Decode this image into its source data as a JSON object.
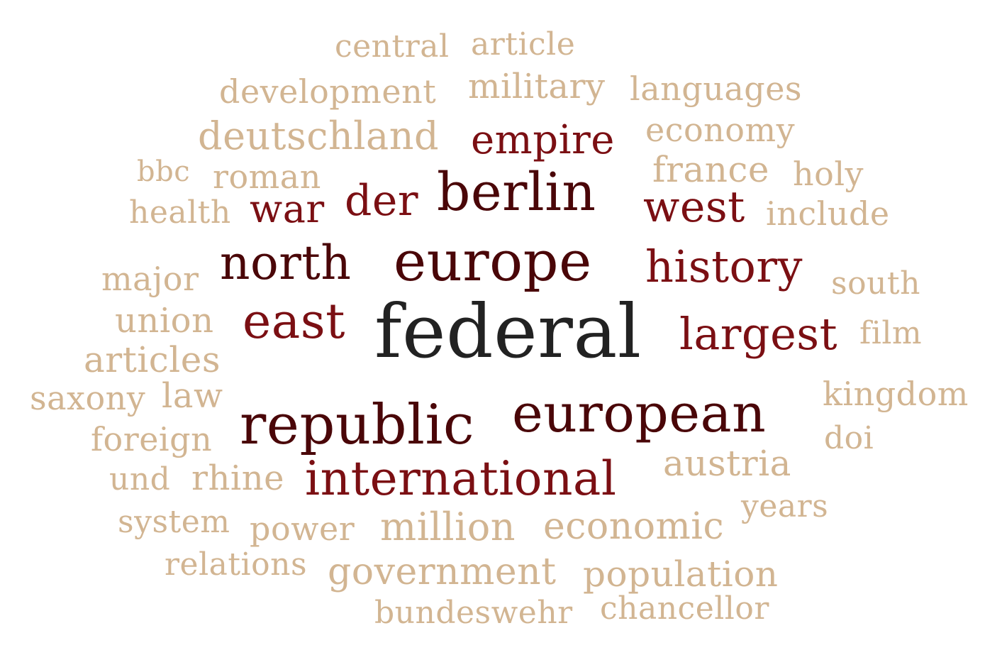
{
  "colors": {
    "light": "#d2b592",
    "mid": "#7b0f13",
    "dark": "#4a0608",
    "center": "#222222"
  },
  "words": [
    {
      "text": "central",
      "tone": "light"
    },
    {
      "text": "article",
      "tone": "light"
    },
    {
      "text": "development",
      "tone": "light"
    },
    {
      "text": "military",
      "tone": "light"
    },
    {
      "text": "languages",
      "tone": "light"
    },
    {
      "text": "deutschland",
      "tone": "light"
    },
    {
      "text": "empire",
      "tone": "mid"
    },
    {
      "text": "economy",
      "tone": "light"
    },
    {
      "text": "bbc",
      "tone": "light"
    },
    {
      "text": "roman",
      "tone": "light"
    },
    {
      "text": "france",
      "tone": "light"
    },
    {
      "text": "holy",
      "tone": "light"
    },
    {
      "text": "health",
      "tone": "light"
    },
    {
      "text": "war",
      "tone": "mid"
    },
    {
      "text": "der",
      "tone": "mid"
    },
    {
      "text": "berlin",
      "tone": "dark"
    },
    {
      "text": "west",
      "tone": "mid"
    },
    {
      "text": "include",
      "tone": "light"
    },
    {
      "text": "north",
      "tone": "dark"
    },
    {
      "text": "europe",
      "tone": "dark"
    },
    {
      "text": "history",
      "tone": "mid"
    },
    {
      "text": "major",
      "tone": "light"
    },
    {
      "text": "south",
      "tone": "light"
    },
    {
      "text": "union",
      "tone": "light"
    },
    {
      "text": "east",
      "tone": "mid"
    },
    {
      "text": "federal",
      "tone": "center"
    },
    {
      "text": "largest",
      "tone": "mid"
    },
    {
      "text": "film",
      "tone": "light"
    },
    {
      "text": "articles",
      "tone": "light"
    },
    {
      "text": "saxony",
      "tone": "light"
    },
    {
      "text": "law",
      "tone": "light"
    },
    {
      "text": "kingdom",
      "tone": "light"
    },
    {
      "text": "republic",
      "tone": "dark"
    },
    {
      "text": "european",
      "tone": "dark"
    },
    {
      "text": "foreign",
      "tone": "light"
    },
    {
      "text": "doi",
      "tone": "light"
    },
    {
      "text": "und",
      "tone": "light"
    },
    {
      "text": "rhine",
      "tone": "light"
    },
    {
      "text": "international",
      "tone": "mid"
    },
    {
      "text": "austria",
      "tone": "light"
    },
    {
      "text": "years",
      "tone": "light"
    },
    {
      "text": "system",
      "tone": "light"
    },
    {
      "text": "power",
      "tone": "light"
    },
    {
      "text": "million",
      "tone": "light"
    },
    {
      "text": "economic",
      "tone": "light"
    },
    {
      "text": "relations",
      "tone": "light"
    },
    {
      "text": "government",
      "tone": "light"
    },
    {
      "text": "population",
      "tone": "light"
    },
    {
      "text": "bundeswehr",
      "tone": "light"
    },
    {
      "text": "chancellor",
      "tone": "light"
    }
  ]
}
